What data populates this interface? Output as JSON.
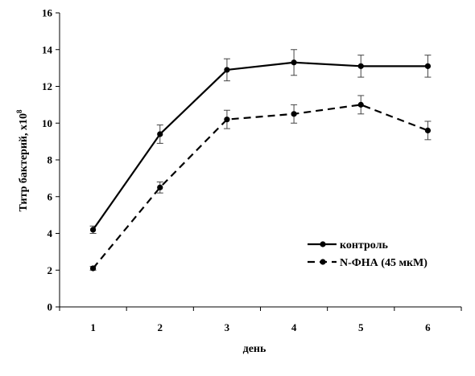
{
  "chart_data": {
    "type": "line",
    "xlabel": "день",
    "ylabel_main": "Титр бактерий, x10",
    "ylabel_exp": "8",
    "categories": [
      "1",
      "2",
      "3",
      "4",
      "5",
      "6"
    ],
    "ylim": [
      0,
      16
    ],
    "yticks": [
      0,
      2,
      4,
      6,
      8,
      10,
      12,
      14,
      16
    ],
    "yticks_labels": [
      "0",
      "2",
      "4",
      "6",
      "8",
      "10",
      "12",
      "14",
      "16"
    ],
    "series": [
      {
        "name": "контроль",
        "style": "solid",
        "values": [
          4.2,
          9.4,
          12.9,
          13.3,
          13.1,
          13.1
        ],
        "errors": [
          0.2,
          0.5,
          0.6,
          0.7,
          0.6,
          0.6
        ]
      },
      {
        "name": "N-ФНА (45 мкМ)",
        "style": "dashed",
        "values": [
          2.1,
          6.5,
          10.2,
          10.5,
          11.0,
          9.6
        ],
        "errors": [
          0.1,
          0.3,
          0.5,
          0.5,
          0.5,
          0.5
        ]
      }
    ],
    "legend_position": "bottom-right",
    "grid": false,
    "colors": {
      "line": "#000000"
    }
  }
}
